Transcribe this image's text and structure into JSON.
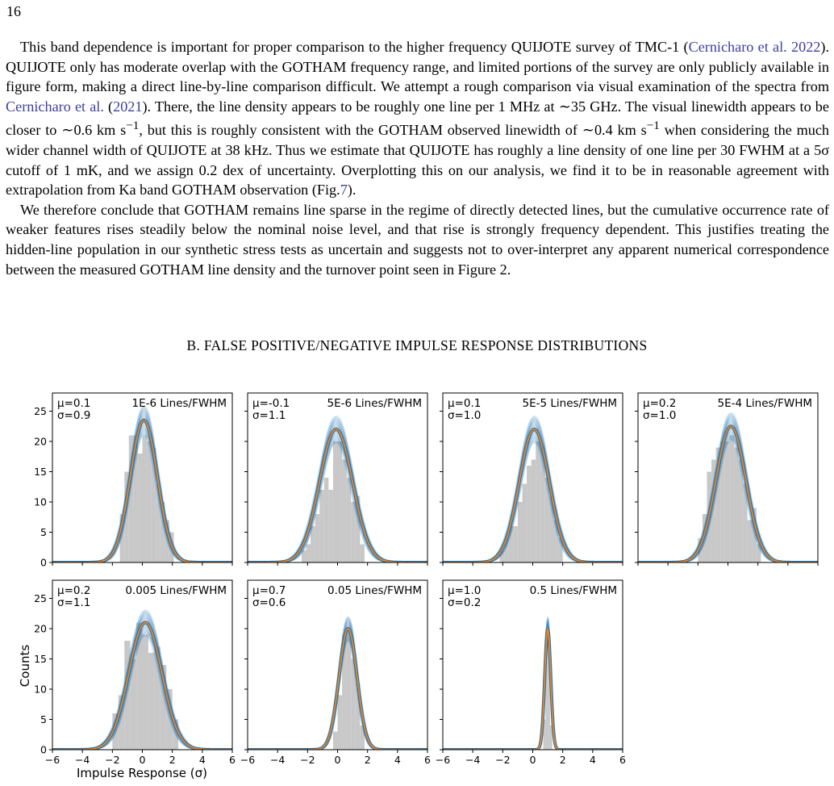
{
  "page_number": "16",
  "paragraph1": {
    "t1": "This band dependence is important for proper comparison to the higher frequency QUIJOTE survey of TMC-1 (",
    "cite1": "Cernicharo et al. 2022",
    "t2": "). QUIJOTE only has moderate overlap with the GOTHAM frequency range, and limited portions of the survey are only publicly available in figure form, making a direct line-by-line comparison difficult. We attempt a rough comparison via visual examination of the spectra from ",
    "cite2": "Cernicharo et al.",
    "t3": " (",
    "cite3": "2021",
    "t4": "). There, the line density appears to be roughly one line per 1 MHz at ∼35 GHz. The visual linewidth appears to be closer to ∼0.6 km s",
    "sup1": "−1",
    "t5": ", but this is roughly consistent with the GOTHAM observed linewidth of ∼0.4 km s",
    "sup2": "−1",
    "t6": " when considering the much wider channel width of QUIJOTE at 38 kHz. Thus we estimate that QUIJOTE has roughly a line density of one line per 30 FWHM at a 5σ cutoff of 1 mK, and we assign 0.2 dex of uncertainty. Overplotting this on our analysis, we find it to be in reasonable agreement with extrapolation from Ka band GOTHAM observation (Fig.",
    "cite4": "7",
    "t7": ")."
  },
  "paragraph2": "We therefore conclude that GOTHAM remains line sparse in the regime of directly detected lines, but the cumulative occurrence rate of weaker features rises steadily below the nominal noise level, and that rise is strongly frequency dependent. This justifies treating the hidden-line population in our synthetic stress tests as uncertain and suggests not to over-interpret any apparent numerical correspondence between the measured GOTHAM line density and the turnover point seen in Figure 2.",
  "section_heading": "B. FALSE POSITIVE/NEGATIVE IMPULSE RESPONSE DISTRIBUTIONS",
  "colors": {
    "histogram": "#c8c8c8",
    "bootstrap_curves": "#1f77b4",
    "mean_fit": "#ff7f0e",
    "citation": "#3e3e9e"
  },
  "chart_data": {
    "type": "histogram",
    "xlabel": "Impulse Response (σ)",
    "ylabel": "Counts",
    "xlim": [
      -6,
      6
    ],
    "ylim": [
      0,
      28
    ],
    "xticks": [
      -6,
      -4,
      -2,
      0,
      2,
      4,
      6
    ],
    "yticks": [
      0,
      5,
      10,
      15,
      20,
      25
    ],
    "panels": [
      {
        "density": "1E-6 Lines/FWHM",
        "mu_label": "μ=0.1",
        "sigma_label": "σ=0.9",
        "mu": 0.1,
        "sigma": 0.9,
        "peak": 23.5,
        "bins": [
          [
            -1.5,
            -1.2,
            8
          ],
          [
            -1.2,
            -0.9,
            15
          ],
          [
            -0.9,
            -0.6,
            21
          ],
          [
            -0.6,
            -0.3,
            21
          ],
          [
            -0.3,
            0,
            18
          ],
          [
            0,
            0.3,
            21
          ],
          [
            0.3,
            0.6,
            20
          ],
          [
            0.6,
            0.9,
            19
          ],
          [
            0.9,
            1.2,
            13
          ],
          [
            1.2,
            1.5,
            10
          ],
          [
            1.5,
            1.8,
            7
          ],
          [
            1.8,
            2.1,
            5
          ]
        ]
      },
      {
        "density": "5E-6 Lines/FWHM",
        "mu_label": "μ=-0.1",
        "sigma_label": "σ=1.1",
        "mu": -0.1,
        "sigma": 1.1,
        "peak": 22,
        "bins": [
          [
            -2.4,
            -2.1,
            2
          ],
          [
            -2.1,
            -1.8,
            3
          ],
          [
            -1.8,
            -1.5,
            6
          ],
          [
            -1.5,
            -1.2,
            8
          ],
          [
            -1.2,
            -0.9,
            12
          ],
          [
            -0.9,
            -0.6,
            14
          ],
          [
            -0.6,
            -0.3,
            12
          ],
          [
            -0.3,
            0,
            20
          ],
          [
            0,
            0.3,
            20
          ],
          [
            0.3,
            0.6,
            17
          ],
          [
            0.6,
            0.9,
            14
          ],
          [
            0.9,
            1.2,
            10
          ],
          [
            1.2,
            1.5,
            11
          ],
          [
            1.5,
            1.8,
            3
          ]
        ]
      },
      {
        "density": "5E-5 Lines/FWHM",
        "mu_label": "μ=0.1",
        "sigma_label": "σ=1.0",
        "mu": 0.1,
        "sigma": 1.0,
        "peak": 22,
        "bins": [
          [
            -2.2,
            -1.9,
            2
          ],
          [
            -1.9,
            -1.6,
            4
          ],
          [
            -1.6,
            -1.3,
            6
          ],
          [
            -1.3,
            -1.0,
            6
          ],
          [
            -1.0,
            -0.7,
            10
          ],
          [
            -0.7,
            -0.4,
            13
          ],
          [
            -0.4,
            -0.1,
            16
          ],
          [
            -0.1,
            0.2,
            17
          ],
          [
            0.2,
            0.5,
            20
          ],
          [
            0.5,
            0.8,
            19
          ],
          [
            0.8,
            1.1,
            14
          ],
          [
            1.1,
            1.4,
            11
          ],
          [
            1.4,
            1.7,
            7
          ],
          [
            1.7,
            2.0,
            4
          ]
        ]
      },
      {
        "density": "5E-4 Lines/FWHM",
        "mu_label": "μ=0.2",
        "sigma_label": "σ=1.0",
        "mu": 0.2,
        "sigma": 1.0,
        "peak": 22.5,
        "bins": [
          [
            -2.0,
            -1.7,
            4
          ],
          [
            -1.7,
            -1.4,
            8
          ],
          [
            -1.4,
            -1.1,
            15
          ],
          [
            -1.1,
            -0.8,
            17
          ],
          [
            -0.8,
            -0.5,
            19
          ],
          [
            -0.5,
            -0.2,
            20
          ],
          [
            -0.2,
            0.1,
            20
          ],
          [
            0.1,
            0.4,
            21
          ],
          [
            0.4,
            0.7,
            19
          ],
          [
            0.7,
            1.0,
            17
          ],
          [
            1.0,
            1.3,
            13
          ],
          [
            1.3,
            1.6,
            7
          ],
          [
            1.6,
            1.9,
            9
          ],
          [
            1.9,
            2.2,
            3
          ]
        ]
      },
      {
        "density": "0.005 Lines/FWHM",
        "mu_label": "μ=0.2",
        "sigma_label": "σ=1.1",
        "mu": 0.2,
        "sigma": 1.1,
        "peak": 21,
        "bins": [
          [
            -2.0,
            -1.6,
            6
          ],
          [
            -1.6,
            -1.2,
            9
          ],
          [
            -1.2,
            -0.8,
            18
          ],
          [
            -0.8,
            -0.4,
            15
          ],
          [
            -0.4,
            0,
            21
          ],
          [
            0,
            0.4,
            19
          ],
          [
            0.4,
            0.8,
            16
          ],
          [
            0.8,
            1.2,
            17
          ],
          [
            1.2,
            1.6,
            14
          ],
          [
            1.6,
            2.0,
            10
          ],
          [
            2.0,
            2.4,
            5
          ]
        ]
      },
      {
        "density": "0.05 Lines/FWHM",
        "mu_label": "μ=0.7",
        "sigma_label": "σ=0.6",
        "mu": 0.7,
        "sigma": 0.6,
        "peak": 20,
        "bins": [
          [
            -0.3,
            0,
            3
          ],
          [
            0,
            0.3,
            9
          ],
          [
            0.3,
            0.6,
            19
          ],
          [
            0.6,
            0.9,
            20
          ],
          [
            0.9,
            1.2,
            15
          ],
          [
            1.2,
            1.5,
            11
          ],
          [
            1.5,
            1.8,
            4
          ]
        ]
      },
      {
        "density": "0.5 Lines/FWHM",
        "mu_label": "μ=1.0",
        "sigma_label": "σ=0.2",
        "mu": 1.0,
        "sigma": 0.2,
        "peak": 20,
        "bins": [
          [
            0.7,
            0.85,
            5
          ],
          [
            0.85,
            1.0,
            20
          ],
          [
            1.0,
            1.15,
            18
          ],
          [
            1.15,
            1.3,
            4
          ]
        ]
      }
    ]
  }
}
